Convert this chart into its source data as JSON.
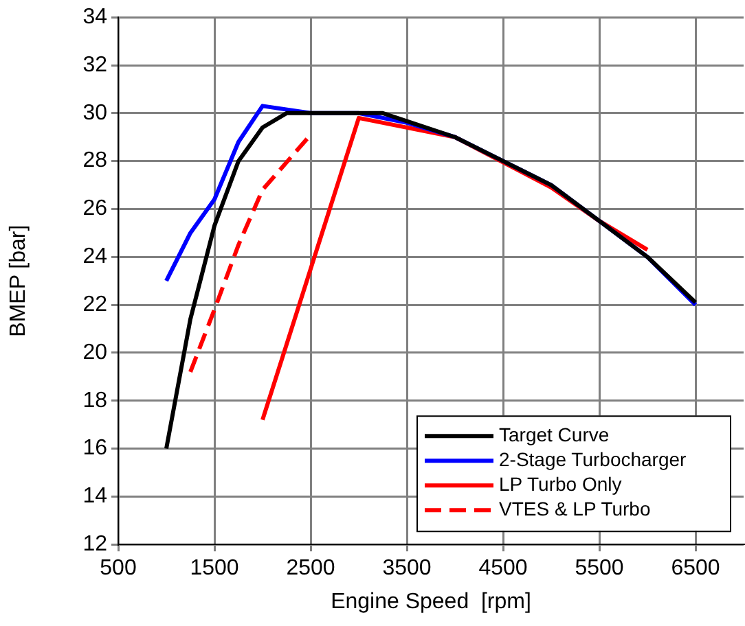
{
  "chart_data": {
    "type": "line",
    "xlabel": "Engine Speed  [rpm]",
    "ylabel": "BMEP [bar]",
    "xlim": [
      500,
      7000
    ],
    "xticks": [
      500,
      1500,
      2500,
      3500,
      4500,
      5500,
      6500
    ],
    "ylim": [
      12,
      34
    ],
    "yticks": [
      12,
      14,
      16,
      18,
      20,
      22,
      24,
      26,
      28,
      30,
      32,
      34
    ],
    "grid": true,
    "legend": "bottom right",
    "marker": "none",
    "series": [
      {
        "name": "Target Curve",
        "color": "#000000",
        "line_style": "solid",
        "x": [
          1000,
          1250,
          1500,
          1750,
          2000,
          2250,
          3000,
          3250,
          4000,
          4500,
          5000,
          5500,
          6000,
          6500
        ],
        "values": [
          16,
          21.4,
          25.3,
          28,
          29.4,
          30,
          30,
          30,
          29,
          28,
          27,
          25.5,
          24,
          22.1
        ]
      },
      {
        "name": "2-Stage Turbocharger",
        "color": "#0000ff",
        "line_style": "solid",
        "x": [
          1000,
          1250,
          1500,
          1750,
          2000,
          2500,
          3000,
          3500,
          4000,
          4500,
          5000,
          5500,
          6000,
          6500
        ],
        "values": [
          23,
          25,
          26.4,
          28.8,
          30.3,
          30,
          30,
          29.6,
          29,
          28,
          27,
          25.5,
          24,
          22
        ]
      },
      {
        "name": "LP Turbo Only",
        "color": "#ff0000",
        "line_style": "solid",
        "x": [
          2000,
          3000,
          4000,
          5000,
          5500,
          6000
        ],
        "values": [
          17.2,
          29.8,
          29,
          26.9,
          25.5,
          24.3
        ]
      },
      {
        "name": "VTES & LP Turbo",
        "color": "#ff0000",
        "line_style": "dashed",
        "x": [
          1250,
          1500,
          1750,
          2000,
          2500
        ],
        "values": [
          19.2,
          21.8,
          24.5,
          26.8,
          29.1
        ]
      }
    ]
  }
}
